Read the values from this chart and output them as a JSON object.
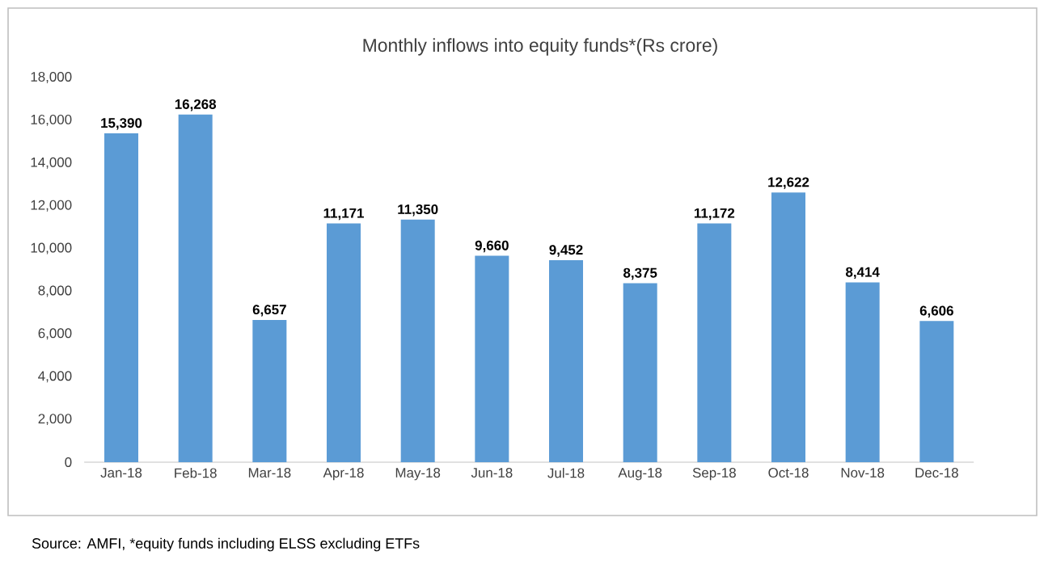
{
  "chart_data": {
    "type": "bar",
    "title": "Monthly inflows into equity funds*(Rs crore)",
    "categories": [
      "Jan-18",
      "Feb-18",
      "Mar-18",
      "Apr-18",
      "May-18",
      "Jun-18",
      "Jul-18",
      "Aug-18",
      "Sep-18",
      "Oct-18",
      "Nov-18",
      "Dec-18"
    ],
    "values": [
      15390,
      16268,
      6657,
      11171,
      11350,
      9660,
      9452,
      8375,
      11172,
      12622,
      8414,
      6606
    ],
    "value_labels": [
      "15,390",
      "16,268",
      "6,657",
      "11,171",
      "11,350",
      "9,660",
      "9,452",
      "8,375",
      "11,172",
      "12,622",
      "8,414",
      "6,606"
    ],
    "color": "#5b9bd5",
    "ylim": [
      0,
      18000
    ],
    "yticks": [
      0,
      {
        "value": 2000,
        "label": "2,000"
      },
      {
        "value": 4000,
        "label": "4,000"
      },
      {
        "value": 6000,
        "label": "6,000"
      },
      {
        "value": 8000,
        "label": "8,000"
      },
      {
        "value": 10000,
        "label": "10,000"
      },
      {
        "value": 12000,
        "label": "12,000"
      },
      {
        "value": 14000,
        "label": "14,000"
      },
      {
        "value": 16000,
        "label": "16,000"
      },
      {
        "value": 18000,
        "label": "18,000"
      }
    ],
    "annotations": [
      "Source: AMFI, *equity funds including ELSS excluding ETFs"
    ]
  }
}
